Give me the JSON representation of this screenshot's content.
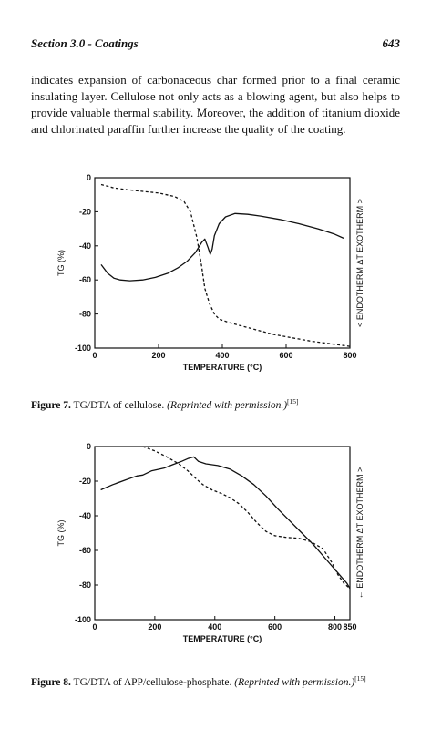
{
  "header": {
    "section": "Section 3.0 - Coatings",
    "page": "643"
  },
  "body_text": "indicates expansion of carbonaceous char formed prior to a final ceramic insulating layer. Cellulose not only acts as a blowing agent, but also helps to provide valuable thermal stability. Moreover, the addition of titanium dioxide and chlorinated paraffin further increase the quality of the coating.",
  "figures": [
    {
      "caption_label": "Figure 7.",
      "caption_text": "TG/DTA of cellulose.",
      "caption_note": "(Reprinted with permission.)",
      "caption_ref": "[15]"
    },
    {
      "caption_label": "Figure 8.",
      "caption_text": "TG/DTA of APP/cellulose-phosphate.",
      "caption_note": "(Reprinted with permission.)",
      "caption_ref": "[15]"
    }
  ],
  "chart_data": [
    {
      "type": "line",
      "xlabel": "TEMPERATURE (°C)",
      "ylabel": "TG (%)",
      "y2label": "< ENDOTHERM    ΔT    EXOTHERM >",
      "xlim": [
        0,
        800
      ],
      "ylim": [
        -100,
        0
      ],
      "x_ticks": [
        0,
        200,
        400,
        600,
        800
      ],
      "y_ticks": [
        0,
        -20,
        -40,
        -60,
        -80,
        -100
      ],
      "series": [
        {
          "style": "dashed",
          "points": [
            [
              20,
              -4
            ],
            [
              60,
              -6
            ],
            [
              100,
              -7
            ],
            [
              150,
              -8
            ],
            [
              200,
              -9
            ],
            [
              250,
              -11
            ],
            [
              280,
              -14
            ],
            [
              300,
              -20
            ],
            [
              320,
              -35
            ],
            [
              335,
              -52
            ],
            [
              345,
              -65
            ],
            [
              360,
              -74
            ],
            [
              375,
              -80
            ],
            [
              390,
              -83
            ],
            [
              420,
              -85
            ],
            [
              460,
              -87
            ],
            [
              500,
              -89
            ],
            [
              560,
              -92
            ],
            [
              620,
              -94
            ],
            [
              680,
              -96
            ],
            [
              740,
              -97.5
            ],
            [
              780,
              -98.5
            ],
            [
              800,
              -99
            ]
          ]
        },
        {
          "style": "solid",
          "points": [
            [
              20,
              -51
            ],
            [
              40,
              -56
            ],
            [
              60,
              -59
            ],
            [
              80,
              -60
            ],
            [
              110,
              -60.5
            ],
            [
              150,
              -60
            ],
            [
              190,
              -58.5
            ],
            [
              230,
              -56
            ],
            [
              260,
              -53
            ],
            [
              290,
              -49
            ],
            [
              315,
              -44
            ],
            [
              335,
              -38
            ],
            [
              345,
              -36
            ],
            [
              355,
              -41
            ],
            [
              362,
              -45
            ],
            [
              368,
              -42
            ],
            [
              375,
              -34
            ],
            [
              390,
              -27
            ],
            [
              410,
              -23
            ],
            [
              440,
              -21
            ],
            [
              480,
              -21.5
            ],
            [
              520,
              -22.5
            ],
            [
              580,
              -24.5
            ],
            [
              640,
              -27
            ],
            [
              700,
              -30
            ],
            [
              750,
              -33
            ],
            [
              780,
              -35.5
            ]
          ]
        }
      ]
    },
    {
      "type": "line",
      "xlabel": "TEMPERATURE (°C)",
      "ylabel": "TG (%)",
      "y2label": "← ENDOTHERM    ΔT    EXOTHERM >",
      "xlim": [
        0,
        850
      ],
      "ylim": [
        -100,
        0
      ],
      "x_ticks": [
        0,
        200,
        400,
        600,
        800,
        850
      ],
      "y_ticks": [
        0,
        -20,
        -40,
        -60,
        -80,
        -100
      ],
      "series": [
        {
          "style": "dashed",
          "points": [
            [
              160,
              0
            ],
            [
              200,
              -2.5
            ],
            [
              240,
              -6
            ],
            [
              280,
              -10
            ],
            [
              310,
              -14
            ],
            [
              340,
              -19
            ],
            [
              360,
              -22
            ],
            [
              390,
              -25
            ],
            [
              420,
              -27
            ],
            [
              450,
              -29.5
            ],
            [
              480,
              -33
            ],
            [
              510,
              -38
            ],
            [
              540,
              -44
            ],
            [
              570,
              -49
            ],
            [
              600,
              -51.5
            ],
            [
              640,
              -52.5
            ],
            [
              680,
              -53
            ],
            [
              720,
              -55
            ],
            [
              760,
              -59
            ],
            [
              790,
              -67
            ],
            [
              810,
              -74
            ],
            [
              830,
              -79
            ],
            [
              850,
              -82
            ]
          ]
        },
        {
          "style": "solid",
          "points": [
            [
              20,
              -25
            ],
            [
              60,
              -22
            ],
            [
              100,
              -19.5
            ],
            [
              140,
              -17
            ],
            [
              160,
              -16.5
            ],
            [
              190,
              -14
            ],
            [
              230,
              -12.5
            ],
            [
              260,
              -10.5
            ],
            [
              290,
              -8.5
            ],
            [
              310,
              -7
            ],
            [
              330,
              -6
            ],
            [
              345,
              -8.5
            ],
            [
              370,
              -10
            ],
            [
              410,
              -11
            ],
            [
              450,
              -13
            ],
            [
              490,
              -17
            ],
            [
              530,
              -22
            ],
            [
              570,
              -28.5
            ],
            [
              610,
              -36
            ],
            [
              650,
              -43
            ],
            [
              690,
              -50
            ],
            [
              730,
              -57
            ],
            [
              770,
              -65
            ],
            [
              810,
              -73
            ],
            [
              840,
              -79
            ],
            [
              850,
              -82
            ]
          ]
        }
      ]
    }
  ]
}
